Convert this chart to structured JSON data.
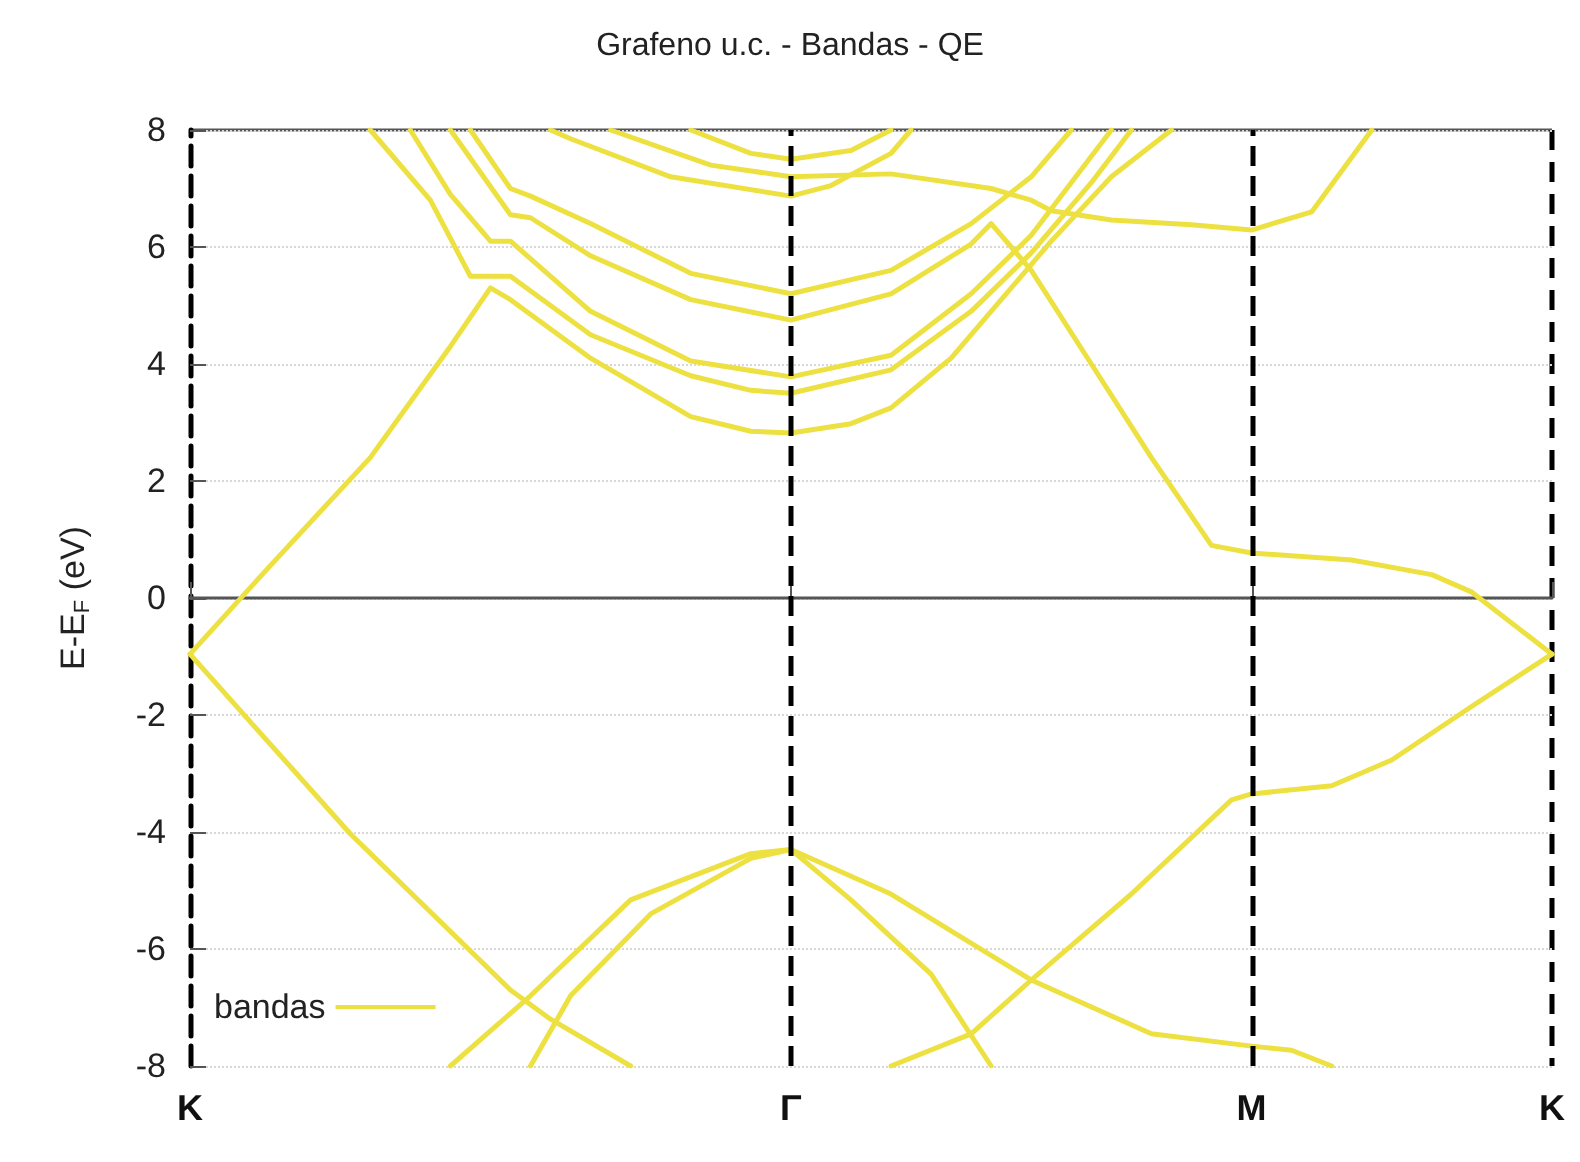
{
  "chart_data": {
    "type": "line",
    "title": "Grafeno u.c. - Bandas - QE",
    "ylabel": "E-E$_{F}$ (eV)",
    "categories": [
      "K",
      null,
      null,
      null,
      null,
      null,
      null,
      null,
      null,
      null,
      null,
      null,
      null,
      null,
      null,
      null,
      null,
      null,
      null,
      null,
      null,
      null,
      null,
      null,
      null,
      null,
      null,
      null,
      null,
      null,
      "Γ",
      null,
      null,
      null,
      null,
      null,
      null,
      null,
      null,
      null,
      null,
      null,
      null,
      null,
      null,
      null,
      null,
      null,
      null,
      null,
      null,
      null,
      null,
      "M",
      null,
      null,
      null,
      null,
      null,
      null,
      null,
      null,
      null,
      null,
      null,
      null,
      null,
      null,
      "K"
    ],
    "ylim": [
      -8,
      8
    ],
    "yticks": [
      -8,
      -6,
      -4,
      -2,
      0,
      2,
      4,
      6,
      8
    ],
    "grid": "y",
    "legend": "bottom left",
    "marker": "none",
    "line_style": "solid",
    "ref_lines": [
      {
        "axis": "x",
        "value": "Γ",
        "color": "#000000",
        "line_style": "dashed"
      },
      {
        "axis": "x",
        "value": "M",
        "color": "#000000",
        "line_style": "dashed"
      }
    ],
    "series": [
      {
        "name": "bandas",
        "color": "#ede142",
        "values": [
          -0.96,
          null,
          null,
          null,
          0.55,
          null,
          null,
          null,
          null,
          2.4,
          null,
          null,
          null,
          4.3,
          4.8,
          5.3,
          5.1,
          null,
          null,
          null,
          4.1,
          null,
          null,
          null,
          null,
          3.1,
          null,
          null,
          2.85,
          null,
          2.82,
          null,
          null,
          2.98,
          null,
          3.25,
          null,
          null,
          4.1,
          null,
          null,
          null,
          5.7,
          6.1,
          null,
          null,
          7.2,
          null,
          null,
          8,
          null,
          null,
          null,
          null,
          null,
          null,
          null,
          null,
          null,
          null,
          null,
          null,
          null,
          null,
          null,
          null,
          null,
          null,
          null
        ]
      },
      {
        "color": "#ede142",
        "values": [
          null,
          null,
          null,
          null,
          null,
          null,
          null,
          null,
          null,
          8,
          null,
          null,
          6.8,
          null,
          5.5,
          null,
          5.5,
          null,
          null,
          null,
          4.5,
          null,
          null,
          null,
          null,
          3.8,
          null,
          null,
          3.55,
          null,
          3.5,
          null,
          null,
          null,
          null,
          3.9,
          null,
          null,
          null,
          4.9,
          null,
          null,
          5.9,
          null,
          null,
          7.1,
          null,
          8,
          null,
          null,
          null,
          null,
          null,
          null,
          null,
          null,
          null,
          null,
          null,
          null,
          null,
          null,
          null,
          null,
          null,
          null,
          null,
          null,
          null
        ]
      },
      {
        "color": "#ede142",
        "values": [
          null,
          null,
          null,
          null,
          null,
          null,
          null,
          null,
          null,
          null,
          null,
          8,
          null,
          6.9,
          null,
          6.1,
          6.1,
          null,
          null,
          null,
          4.9,
          null,
          null,
          null,
          null,
          4.05,
          null,
          null,
          null,
          null,
          3.78,
          null,
          null,
          null,
          null,
          4.15,
          null,
          null,
          null,
          5.2,
          null,
          null,
          6.2,
          null,
          null,
          null,
          8,
          null,
          null,
          null,
          null,
          null,
          null,
          null,
          null,
          null,
          null,
          null,
          null,
          null,
          null,
          null,
          null,
          null,
          null,
          null,
          null,
          null,
          null
        ]
      },
      {
        "color": "#ede142",
        "values": [
          null,
          null,
          null,
          null,
          null,
          null,
          null,
          null,
          null,
          null,
          null,
          null,
          null,
          8,
          null,
          null,
          6.55,
          6.5,
          null,
          null,
          5.85,
          null,
          null,
          null,
          null,
          5.1,
          null,
          null,
          null,
          null,
          4.75,
          null,
          null,
          null,
          null,
          5.2,
          null,
          null,
          null,
          6.05,
          6.4,
          null,
          5.6,
          null,
          null,
          4.0,
          null,
          null,
          2.4,
          null,
          null,
          0.9,
          null,
          0.77,
          null,
          null,
          null,
          null,
          0.65,
          null,
          null,
          null,
          0.4,
          null,
          0.1,
          null,
          null,
          null,
          -0.96
        ]
      },
      {
        "color": "#ede142",
        "values": [
          null,
          null,
          null,
          null,
          null,
          null,
          null,
          null,
          null,
          null,
          null,
          null,
          null,
          null,
          8,
          null,
          7.0,
          6.87,
          null,
          null,
          6.4,
          null,
          null,
          null,
          null,
          5.55,
          null,
          null,
          null,
          null,
          5.2,
          null,
          null,
          null,
          null,
          5.6,
          null,
          null,
          null,
          6.4,
          null,
          null,
          7.2,
          null,
          8,
          null,
          null,
          null,
          null,
          null,
          null,
          null,
          null,
          null,
          null,
          null,
          null,
          null,
          null,
          null,
          null,
          null,
          null,
          null,
          null,
          null,
          null,
          null,
          null
        ]
      },
      {
        "color": "#ede142",
        "values": [
          null,
          null,
          null,
          null,
          null,
          null,
          null,
          null,
          null,
          null,
          null,
          null,
          null,
          null,
          null,
          null,
          null,
          null,
          8,
          7.85,
          null,
          null,
          null,
          null,
          7.2,
          null,
          null,
          null,
          null,
          null,
          6.87,
          null,
          7.05,
          null,
          null,
          7.6,
          8,
          null,
          null,
          null,
          null,
          null,
          null,
          null,
          null,
          null,
          null,
          null,
          null,
          null,
          null,
          null,
          null,
          null,
          null,
          null,
          null,
          null,
          null,
          null,
          null,
          null,
          null,
          null,
          null,
          null,
          null,
          null,
          null
        ]
      },
      {
        "color": "#ede142",
        "values": [
          null,
          null,
          null,
          null,
          null,
          null,
          null,
          null,
          null,
          null,
          null,
          null,
          null,
          null,
          null,
          null,
          null,
          null,
          null,
          null,
          null,
          8,
          null,
          null,
          null,
          null,
          7.4,
          null,
          null,
          null,
          7.2,
          null,
          null,
          null,
          null,
          7.25,
          null,
          null,
          null,
          null,
          7.0,
          null,
          6.8,
          6.62,
          null,
          null,
          6.46,
          null,
          null,
          null,
          6.38,
          null,
          null,
          6.29,
          null,
          null,
          6.6,
          null,
          null,
          8,
          null,
          null,
          null,
          null,
          null,
          null,
          null,
          null,
          null
        ]
      },
      {
        "color": "#ede142",
        "values": [
          null,
          null,
          null,
          null,
          null,
          null,
          null,
          null,
          null,
          null,
          null,
          null,
          null,
          null,
          null,
          null,
          null,
          null,
          null,
          null,
          null,
          null,
          null,
          null,
          null,
          8,
          null,
          null,
          7.6,
          null,
          7.5,
          null,
          null,
          7.65,
          null,
          8,
          null,
          null,
          null,
          null,
          null,
          null,
          null,
          null,
          null,
          null,
          null,
          null,
          null,
          null,
          null,
          null,
          null,
          null,
          null,
          null,
          null,
          null,
          null,
          null,
          null,
          null,
          null,
          null,
          null,
          null,
          null,
          null,
          null
        ]
      },
      {
        "color": "#ede142",
        "values": [
          -0.96,
          null,
          null,
          null,
          null,
          null,
          null,
          null,
          -4.03,
          null,
          null,
          null,
          null,
          null,
          null,
          null,
          -6.7,
          null,
          -7.2,
          null,
          null,
          null,
          -8,
          null,
          null,
          null,
          null,
          null,
          null,
          null,
          null,
          null,
          null,
          null,
          null,
          null,
          null,
          null,
          null,
          null,
          null,
          null,
          null,
          null,
          null,
          null,
          null,
          null,
          null,
          null,
          null,
          null,
          null,
          null,
          null,
          null,
          null,
          null,
          null,
          null,
          null,
          null,
          null,
          null,
          null,
          null,
          null,
          null,
          null
        ]
      },
      {
        "color": "#ede142",
        "values": [
          null,
          null,
          null,
          null,
          null,
          null,
          null,
          null,
          null,
          null,
          null,
          null,
          null,
          -8,
          null,
          null,
          null,
          -6.8,
          null,
          null,
          null,
          null,
          -5.16,
          null,
          null,
          null,
          null,
          null,
          -4.37,
          null,
          -4.3,
          null,
          null,
          null,
          null,
          -5.06,
          null,
          null,
          null,
          null,
          null,
          null,
          -6.53,
          null,
          null,
          null,
          null,
          null,
          -7.45,
          null,
          null,
          null,
          null,
          -7.66,
          null,
          -7.73,
          null,
          -8,
          null,
          null,
          null,
          null,
          null,
          null,
          null,
          null,
          null,
          null,
          null
        ]
      },
      {
        "color": "#ede142",
        "values": [
          null,
          null,
          null,
          null,
          null,
          null,
          null,
          null,
          null,
          null,
          null,
          null,
          null,
          null,
          null,
          null,
          null,
          -8,
          null,
          -6.8,
          null,
          null,
          null,
          -5.4,
          null,
          null,
          null,
          null,
          -4.45,
          null,
          -4.3,
          null,
          null,
          -5.16,
          null,
          null,
          null,
          -6.43,
          null,
          null,
          -8,
          null,
          null,
          null,
          null,
          null,
          null,
          null,
          null,
          null,
          null,
          null,
          null,
          null,
          null,
          null,
          null,
          null,
          null,
          null,
          null,
          null,
          null,
          null,
          null,
          null,
          null,
          null,
          null
        ]
      },
      {
        "color": "#ede142",
        "values": [
          null,
          null,
          null,
          null,
          null,
          null,
          null,
          null,
          null,
          null,
          null,
          null,
          null,
          null,
          null,
          null,
          null,
          null,
          null,
          null,
          null,
          null,
          null,
          null,
          null,
          null,
          null,
          null,
          null,
          null,
          null,
          null,
          null,
          null,
          null,
          -8,
          null,
          null,
          null,
          -7.45,
          null,
          null,
          -6.53,
          null,
          null,
          null,
          null,
          -5.06,
          null,
          null,
          null,
          null,
          -3.45,
          -3.35,
          null,
          null,
          null,
          -3.21,
          null,
          null,
          -2.77,
          null,
          null,
          null,
          -1.85,
          null,
          null,
          null,
          -0.96
        ]
      }
    ]
  }
}
